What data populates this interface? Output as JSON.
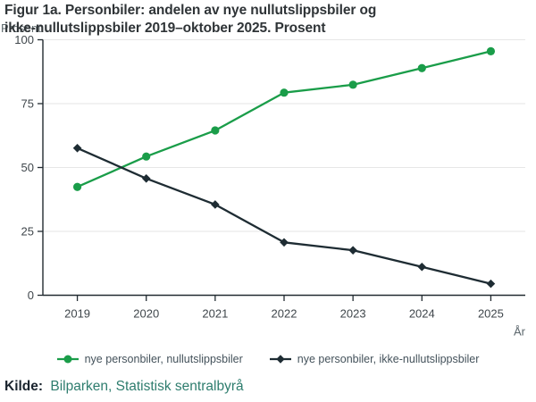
{
  "figure": {
    "title_line1": "Figur 1a. Personbiler: andelen av nye nullutslippsbiler og",
    "title_line2": "ikke-nullutslippsbiler 2019–oktober 2025. Prosent",
    "y_axis_unit_label": "Prosent",
    "source_prefix": "Kilde:",
    "source_link": "Bilparken, Statistisk sentralbyrå"
  },
  "chart_data": {
    "type": "line",
    "categories": [
      "2019",
      "2020",
      "2021",
      "2022",
      "2023",
      "2024",
      "2025"
    ],
    "series": [
      {
        "name": "nye personbiler, nullutslippsbiler",
        "marker": "circle",
        "color": "#1a9d49",
        "values": [
          42.4,
          54.3,
          64.5,
          79.3,
          82.4,
          88.9,
          95.5
        ]
      },
      {
        "name": "nye personbiler, ikke-nullutslippsbiler",
        "marker": "diamond",
        "color": "#1e2c33",
        "values": [
          57.6,
          45.7,
          35.5,
          20.7,
          17.6,
          11.1,
          4.5
        ]
      }
    ],
    "ylim": [
      0,
      100
    ],
    "yticks": [
      0,
      25,
      50,
      75,
      100
    ],
    "ylabel": "Prosent",
    "xlabel": "År",
    "grid": true,
    "legend_position": "bottom"
  },
  "style": {
    "gridline_color": "#e6e6e6",
    "axis_color": "#222b31",
    "tick_label_color": "#3f464b",
    "axis_title_color": "#5c676d"
  }
}
